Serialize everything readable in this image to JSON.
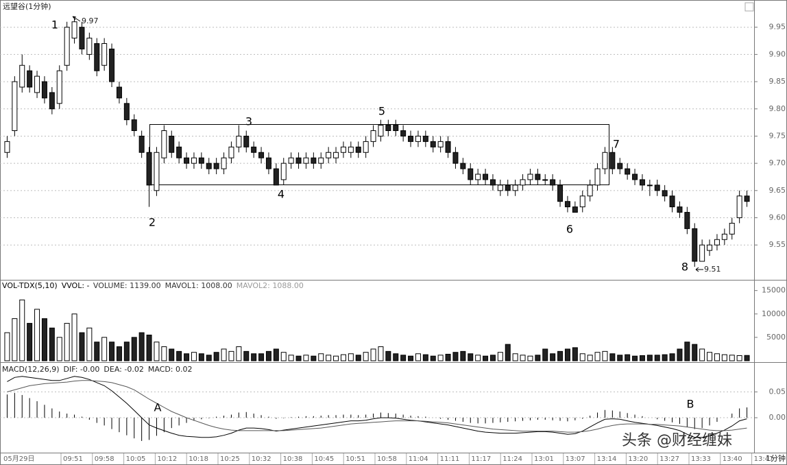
{
  "title": "远望谷(1分钟)",
  "period": "1分钟",
  "watermark": "头条 @财经缠妹",
  "x_labels": [
    "05月29日",
    "09:51",
    "09:58",
    "10:05",
    "10:12",
    "10:18",
    "10:25",
    "10:32",
    "10:38",
    "10:45",
    "10:51",
    "10:58",
    "11:04",
    "11:11",
    "11:17",
    "11:24",
    "13:01",
    "13:07",
    "13:14",
    "13:20",
    "13:27",
    "13:33",
    "13:40",
    "13:47"
  ],
  "chart_data": [
    {
      "type": "candlestick",
      "open": [
        9.72,
        9.76,
        9.84,
        9.87,
        9.83,
        9.85,
        9.83,
        9.81,
        9.88,
        9.93,
        9.95,
        9.9,
        9.92,
        9.88,
        9.91,
        9.84,
        9.81,
        9.78,
        9.75,
        9.72,
        9.65,
        9.71,
        9.75,
        9.73,
        9.71,
        9.7,
        9.71,
        9.7,
        9.7,
        9.69,
        9.71,
        9.73,
        9.75,
        9.73,
        9.72,
        9.71,
        9.69,
        9.67,
        9.7,
        9.71,
        9.7,
        9.71,
        9.7,
        9.71,
        9.71,
        9.72,
        9.72,
        9.73,
        9.72,
        9.74,
        9.75,
        9.77,
        9.77,
        9.76,
        9.75,
        9.74,
        9.75,
        9.74,
        9.73,
        9.74,
        9.72,
        9.7,
        9.69,
        9.67,
        9.68,
        9.67,
        9.65,
        9.66,
        9.65,
        9.66,
        9.67,
        9.68,
        9.67,
        9.67,
        9.66,
        9.63,
        9.62,
        9.62,
        9.64,
        9.66,
        9.69,
        9.72,
        9.7,
        9.69,
        9.68,
        9.67,
        9.66,
        9.66,
        9.65,
        9.64,
        9.62,
        9.61,
        9.58,
        9.52,
        9.54,
        9.55,
        9.56,
        9.57,
        9.6,
        9.64
      ],
      "high": [
        9.75,
        9.86,
        9.9,
        9.88,
        9.87,
        9.86,
        9.84,
        9.88,
        9.96,
        9.97,
        9.96,
        9.94,
        9.93,
        9.93,
        9.92,
        9.85,
        9.82,
        9.79,
        9.76,
        9.73,
        9.73,
        9.77,
        9.76,
        9.74,
        9.72,
        9.72,
        9.72,
        9.71,
        9.71,
        9.72,
        9.74,
        9.77,
        9.76,
        9.74,
        9.73,
        9.72,
        9.7,
        9.71,
        9.72,
        9.72,
        9.72,
        9.72,
        9.72,
        9.73,
        9.73,
        9.74,
        9.74,
        9.74,
        9.75,
        9.77,
        9.78,
        9.78,
        9.78,
        9.77,
        9.76,
        9.76,
        9.76,
        9.75,
        9.75,
        9.75,
        9.73,
        9.71,
        9.7,
        9.69,
        9.69,
        9.68,
        9.67,
        9.67,
        9.67,
        9.68,
        9.69,
        9.69,
        9.68,
        9.68,
        9.67,
        9.64,
        9.63,
        9.65,
        9.67,
        9.7,
        9.73,
        9.73,
        9.71,
        9.7,
        9.69,
        9.68,
        9.67,
        9.67,
        9.66,
        9.65,
        9.63,
        9.62,
        9.59,
        9.56,
        9.56,
        9.57,
        9.58,
        9.6,
        9.65,
        9.65
      ],
      "low": [
        9.71,
        9.75,
        9.83,
        9.83,
        9.82,
        9.81,
        9.79,
        9.8,
        9.87,
        9.92,
        9.9,
        9.89,
        9.86,
        9.87,
        9.84,
        9.81,
        9.77,
        9.75,
        9.71,
        9.62,
        9.64,
        9.7,
        9.71,
        9.7,
        9.69,
        9.69,
        9.69,
        9.68,
        9.68,
        9.68,
        9.7,
        9.72,
        9.72,
        9.71,
        9.7,
        9.68,
        9.66,
        9.66,
        9.69,
        9.69,
        9.69,
        9.69,
        9.69,
        9.7,
        9.7,
        9.71,
        9.71,
        9.71,
        9.71,
        9.73,
        9.74,
        9.75,
        9.75,
        9.74,
        9.73,
        9.73,
        9.73,
        9.72,
        9.72,
        9.71,
        9.69,
        9.68,
        9.66,
        9.66,
        9.66,
        9.65,
        9.64,
        9.64,
        9.64,
        9.65,
        9.66,
        9.66,
        9.66,
        9.65,
        9.62,
        9.61,
        9.61,
        9.61,
        9.63,
        9.65,
        9.68,
        9.68,
        9.68,
        9.67,
        9.66,
        9.65,
        9.64,
        9.64,
        9.63,
        9.61,
        9.6,
        9.57,
        9.51,
        9.52,
        9.53,
        9.54,
        9.55,
        9.56,
        9.59,
        9.62
      ],
      "close": [
        9.74,
        9.85,
        9.88,
        9.84,
        9.86,
        9.82,
        9.8,
        9.87,
        9.95,
        9.96,
        9.91,
        9.93,
        9.87,
        9.92,
        9.85,
        9.82,
        9.78,
        9.76,
        9.72,
        9.66,
        9.72,
        9.76,
        9.72,
        9.71,
        9.7,
        9.71,
        9.7,
        9.69,
        9.69,
        9.71,
        9.73,
        9.75,
        9.73,
        9.72,
        9.71,
        9.69,
        9.66,
        9.7,
        9.71,
        9.7,
        9.71,
        9.7,
        9.71,
        9.72,
        9.72,
        9.73,
        9.73,
        9.72,
        9.74,
        9.76,
        9.77,
        9.76,
        9.76,
        9.75,
        9.74,
        9.75,
        9.74,
        9.73,
        9.74,
        9.72,
        9.7,
        9.69,
        9.67,
        9.68,
        9.67,
        9.66,
        9.66,
        9.65,
        9.66,
        9.67,
        9.68,
        9.67,
        9.67,
        9.66,
        9.63,
        9.62,
        9.61,
        9.64,
        9.66,
        9.69,
        9.72,
        9.69,
        9.69,
        9.68,
        9.67,
        9.66,
        9.66,
        9.65,
        9.64,
        9.62,
        9.61,
        9.58,
        9.52,
        9.55,
        9.55,
        9.56,
        9.57,
        9.59,
        9.64,
        9.63
      ],
      "ylim": [
        9.486,
        10.0
      ],
      "yticks": [
        9.55,
        {
          "value": 9.6,
          "label": "9.60"
        },
        9.65,
        {
          "value": 9.7,
          "label": "9.70"
        },
        9.75,
        {
          "value": 9.8,
          "label": "9.80"
        },
        9.85,
        {
          "value": 9.9,
          "label": "9.90"
        },
        9.95
      ],
      "grid": true,
      "annotations": [
        "1",
        "2",
        "3",
        "4",
        "5",
        "6",
        "7",
        "8"
      ],
      "high_label": "9.97",
      "low_label": "9.51"
    },
    {
      "type": "volume",
      "title_parts": [
        "VOL-TDX(5,10)",
        "VVOL: -",
        "VOLUME: 1139.00",
        "MAVOL1: 1008.00",
        "MAVOL2: 1088.00"
      ],
      "values": [
        6000,
        9000,
        13000,
        8000,
        11000,
        9000,
        7000,
        5000,
        8000,
        10000,
        6000,
        7000,
        4000,
        5000,
        4000,
        3000,
        4000,
        5000,
        6000,
        5500,
        4000,
        3000,
        2500,
        2000,
        1500,
        1800,
        1500,
        1200,
        1800,
        2500,
        2000,
        3000,
        2000,
        1500,
        1500,
        2000,
        2500,
        1800,
        1200,
        1000,
        1200,
        1000,
        1500,
        1200,
        1000,
        1300,
        1500,
        1200,
        1800,
        2500,
        3000,
        2000,
        1500,
        1200,
        1000,
        1500,
        1300,
        1000,
        1200,
        1400,
        1800,
        2000,
        1500,
        1200,
        1000,
        1200,
        1800,
        3500,
        1500,
        1200,
        1000,
        1200,
        2500,
        1500,
        2000,
        2500,
        2800,
        1500,
        1200,
        1800,
        2000,
        1500,
        1200,
        1300,
        1000,
        1100,
        1200,
        1200,
        1300,
        1500,
        2500,
        4000,
        3500,
        2500,
        1800,
        1500,
        1300,
        1200,
        1100,
        1139
      ],
      "ylim": [
        0,
        17000
      ],
      "yticks": [
        5000,
        10000,
        15000
      ]
    },
    {
      "type": "macd",
      "title_parts": [
        "MACD(12,26,9)",
        "DIF: -0.00",
        "DEA: -0.02",
        "MACD: 0.02"
      ],
      "values": [
        0.045,
        0.048,
        0.044,
        0.038,
        0.032,
        0.025,
        0.018,
        0.012,
        0.008,
        0.006,
        0.002,
        -0.004,
        -0.01,
        -0.015,
        -0.022,
        -0.028,
        -0.034,
        -0.04,
        -0.045,
        -0.043,
        -0.035,
        -0.028,
        -0.02,
        -0.015,
        -0.01,
        -0.006,
        -0.003,
        -0.001,
        0.002,
        0.004,
        0.006,
        0.01,
        0.011,
        0.008,
        0.005,
        0.002,
        -0.002,
        -0.001,
        0.001,
        0.002,
        0.003,
        0.003,
        0.004,
        0.005,
        0.005,
        0.006,
        0.006,
        0.005,
        0.006,
        0.008,
        0.01,
        0.009,
        0.008,
        0.006,
        0.004,
        0.003,
        0.002,
        0,
        -0.002,
        -0.004,
        -0.006,
        -0.008,
        -0.01,
        -0.011,
        -0.011,
        -0.01,
        -0.009,
        -0.008,
        -0.007,
        -0.006,
        -0.005,
        -0.004,
        -0.004,
        -0.005,
        -0.006,
        -0.007,
        -0.005,
        -0.002,
        0.004,
        0.01,
        0.015,
        0.014,
        0.012,
        0.009,
        0.006,
        0.003,
        0,
        -0.003,
        -0.006,
        -0.009,
        -0.012,
        -0.018,
        -0.022,
        -0.02,
        -0.015,
        -0.008,
        0,
        0.008,
        0.018,
        0.02
      ],
      "series": [
        {
          "color": "#000000",
          "values": [
            0.07,
            0.078,
            0.08,
            0.078,
            0.076,
            0.074,
            0.072,
            0.072,
            0.076,
            0.08,
            0.078,
            0.074,
            0.068,
            0.062,
            0.052,
            0.04,
            0.028,
            0.014,
            0.0,
            -0.014,
            -0.02,
            -0.025,
            -0.03,
            -0.034,
            -0.036,
            -0.037,
            -0.038,
            -0.038,
            -0.037,
            -0.034,
            -0.03,
            -0.024,
            -0.02,
            -0.02,
            -0.021,
            -0.023,
            -0.026,
            -0.024,
            -0.022,
            -0.02,
            -0.018,
            -0.016,
            -0.014,
            -0.012,
            -0.01,
            -0.008,
            -0.006,
            -0.006,
            -0.005,
            -0.002,
            0.0,
            0.0,
            -0.001,
            -0.003,
            -0.005,
            -0.006,
            -0.008,
            -0.01,
            -0.012,
            -0.014,
            -0.017,
            -0.02,
            -0.023,
            -0.026,
            -0.028,
            -0.029,
            -0.03,
            -0.03,
            -0.03,
            -0.029,
            -0.028,
            -0.027,
            -0.027,
            -0.028,
            -0.03,
            -0.032,
            -0.031,
            -0.026,
            -0.018,
            -0.01,
            -0.003,
            -0.002,
            -0.003,
            -0.006,
            -0.009,
            -0.011,
            -0.013,
            -0.015,
            -0.018,
            -0.021,
            -0.025,
            -0.032,
            -0.038,
            -0.038,
            -0.035,
            -0.03,
            -0.024,
            -0.016,
            -0.006,
            -0.002
          ]
        },
        {
          "color": "#555555",
          "values": [
            0.05,
            0.054,
            0.058,
            0.062,
            0.064,
            0.066,
            0.067,
            0.068,
            0.069,
            0.071,
            0.072,
            0.072,
            0.071,
            0.07,
            0.068,
            0.064,
            0.06,
            0.054,
            0.045,
            0.036,
            0.028,
            0.02,
            0.012,
            0.006,
            0.0,
            -0.005,
            -0.01,
            -0.015,
            -0.019,
            -0.022,
            -0.024,
            -0.025,
            -0.025,
            -0.025,
            -0.025,
            -0.025,
            -0.025,
            -0.025,
            -0.024,
            -0.023,
            -0.022,
            -0.021,
            -0.02,
            -0.018,
            -0.016,
            -0.014,
            -0.012,
            -0.011,
            -0.01,
            -0.009,
            -0.008,
            -0.007,
            -0.006,
            -0.006,
            -0.006,
            -0.006,
            -0.007,
            -0.008,
            -0.009,
            -0.01,
            -0.012,
            -0.014,
            -0.016,
            -0.018,
            -0.02,
            -0.022,
            -0.023,
            -0.024,
            -0.025,
            -0.026,
            -0.026,
            -0.026,
            -0.026,
            -0.026,
            -0.027,
            -0.028,
            -0.028,
            -0.027,
            -0.025,
            -0.022,
            -0.018,
            -0.015,
            -0.013,
            -0.012,
            -0.012,
            -0.012,
            -0.013,
            -0.013,
            -0.014,
            -0.015,
            -0.016,
            -0.018,
            -0.02,
            -0.022,
            -0.024,
            -0.025,
            -0.025,
            -0.024,
            -0.022,
            -0.02
          ]
        }
      ],
      "ylim": [
        -0.065,
        0.105
      ],
      "yticks": [
        {
          "value": 0,
          "label": "0.00"
        },
        0.05
      ],
      "annotations": [
        "A",
        "B"
      ]
    }
  ]
}
